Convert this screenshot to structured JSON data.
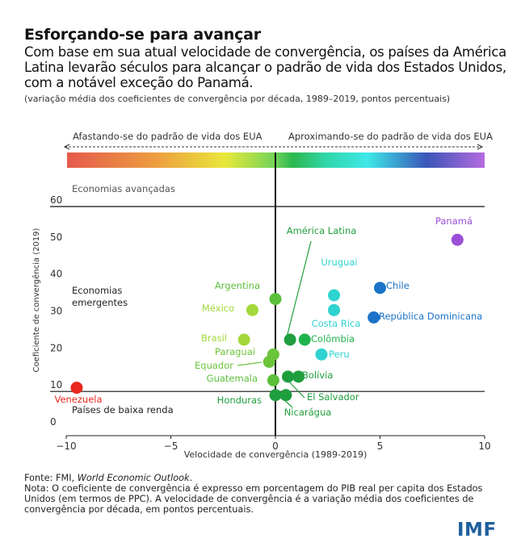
{
  "title": "Esforçando-se para avançar",
  "subtitle": "Com base em sua atual velocidade de convergência, os países da América Latina levarão séculos para alcançar o padrão de vida dos Estados Unidos, com a notável exceção do Panamá.",
  "subtitle_note": "(variação média dos coeficientes de convergência por década, 1989–2019, pontos percentuais)",
  "footer": {
    "source_prefix": "Fonte: FMI, ",
    "source_title": "World Economic Outlook",
    "source_suffix": ".",
    "note": "Nota: O coeficiente de convergência é expresso em porcentagem do PIB real per capita dos Estados Unidos (em termos de PPC). A velocidade de convergência é a variação média dos coeficientes de convergência por década, em pontos percentuais."
  },
  "logo": "IMF",
  "chart_data": {
    "type": "scatter",
    "xlabel": "Velocidade de convergência (1989-2019)",
    "ylabel": "Coeficiente de convergência (2019)",
    "xlim": [
      -10,
      10
    ],
    "ylim": [
      0,
      60
    ],
    "xticks": [
      -10,
      -5,
      0,
      5,
      10
    ],
    "xtick_labels": [
      "−10",
      "−5",
      "0",
      "5",
      "10"
    ],
    "yticks": [
      0,
      10,
      20,
      30,
      40,
      50,
      60
    ],
    "arrow_left_label": "Afastando-se do padrão de vida dos EUA",
    "arrow_right_label": "Aproximando-se do padrão de vida dos EUA",
    "zones": [
      {
        "label": "Economias avançadas",
        "y": 63
      },
      {
        "label": "Economias emergentes",
        "y": 32
      },
      {
        "label": "Países de baixa renda",
        "y": 4
      }
    ],
    "threshold_lines": [
      60,
      10
    ],
    "points": [
      {
        "name": "Panamá",
        "x": 8.7,
        "y": 51,
        "color": "#9b4fd6"
      },
      {
        "name": "Chile",
        "x": 5.0,
        "y": 38,
        "color": "#1a72c9"
      },
      {
        "name": "República Dominicana",
        "x": 4.7,
        "y": 30,
        "color": "#1a72c9"
      },
      {
        "name": "Uruguai",
        "x": 2.8,
        "y": 36,
        "color": "#2fd3d0"
      },
      {
        "name": "Costa Rica",
        "x": 2.8,
        "y": 32,
        "color": "#2fd3d0"
      },
      {
        "name": "Peru",
        "x": 2.2,
        "y": 20,
        "color": "#2fd3d0"
      },
      {
        "name": "América Latina",
        "x": 0.7,
        "y": 24,
        "color": "#1f9e3e"
      },
      {
        "name": "Colômbia",
        "x": 1.4,
        "y": 24,
        "color": "#1fb34d"
      },
      {
        "name": "Bolívia",
        "x": 1.1,
        "y": 14,
        "color": "#1f9e3e"
      },
      {
        "name": "El Salvador",
        "x": 0.6,
        "y": 14,
        "color": "#1f9e3e"
      },
      {
        "name": "Nicarágua",
        "x": 0.5,
        "y": 9,
        "color": "#1f9e3e"
      },
      {
        "name": "Honduras",
        "x": 0.0,
        "y": 9,
        "color": "#1f9e3e"
      },
      {
        "name": "Guatemala",
        "x": -0.1,
        "y": 13,
        "color": "#5bbf3a"
      },
      {
        "name": "Equador",
        "x": -0.3,
        "y": 18,
        "color": "#6cc43c"
      },
      {
        "name": "Paraguai",
        "x": -0.1,
        "y": 20,
        "color": "#6cc43c"
      },
      {
        "name": "Argentina",
        "x": 0.0,
        "y": 35,
        "color": "#5bbf3a"
      },
      {
        "name": "México",
        "x": -1.1,
        "y": 32,
        "color": "#a3d83a"
      },
      {
        "name": "Brasil",
        "x": -1.5,
        "y": 24,
        "color": "#a3d83a"
      },
      {
        "name": "Venezuela",
        "x": -9.5,
        "y": 11,
        "color": "#e8271e"
      }
    ]
  },
  "colors": {
    "gradient_start": "#e55a4d",
    "gradient_mid": "#e8e83a",
    "gradient_green": "#2cb84f",
    "gradient_cyan": "#3ee8e8",
    "gradient_blue": "#3a56b8",
    "gradient_end": "#b66be0",
    "logo": "#1f5f9e"
  }
}
